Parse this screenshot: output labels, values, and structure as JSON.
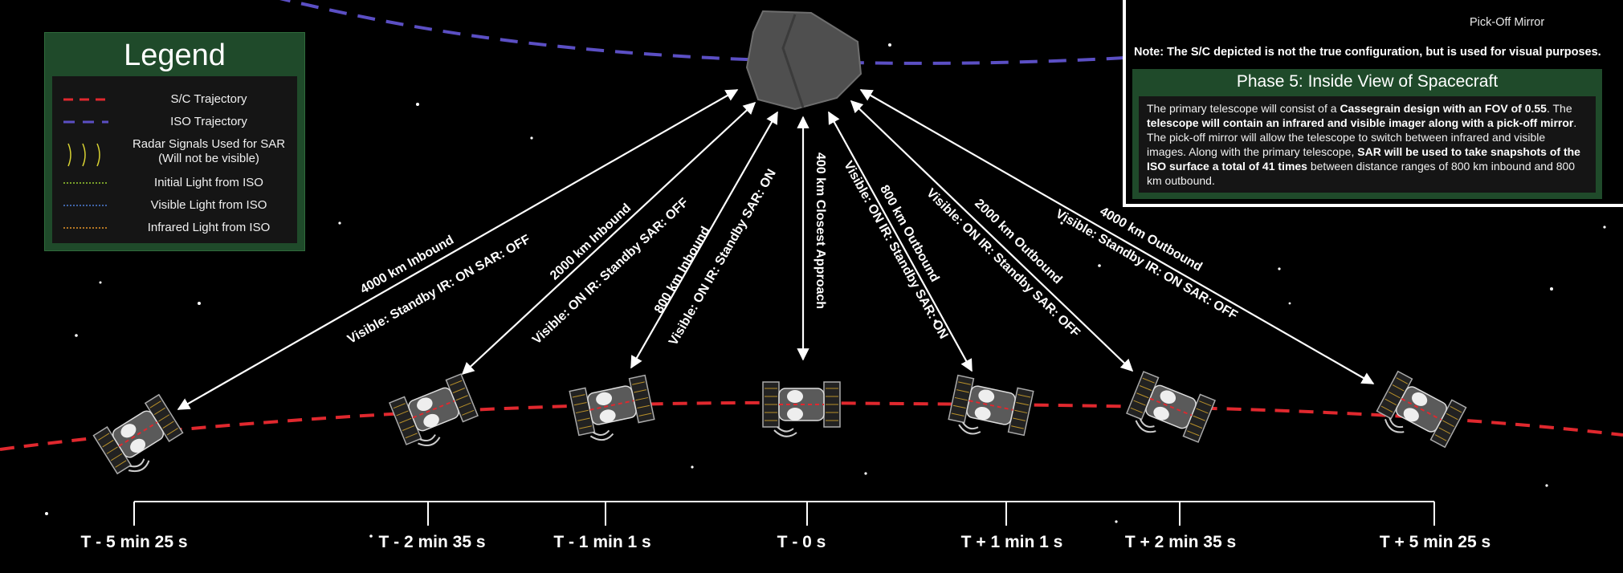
{
  "legend": {
    "title": "Legend",
    "items": [
      {
        "label": "S/C Trajectory",
        "symbol": "red-dashed-line",
        "color": "#e0282e"
      },
      {
        "label": "ISO Trajectory",
        "symbol": "purple-dashed-line",
        "color": "#5b4fc4"
      },
      {
        "label": "Radar Signals Used for SAR",
        "label2": "(Will not be visible)",
        "symbol": "yellow-arcs",
        "color": "#d8d232"
      },
      {
        "label": "Initial Light from ISO",
        "symbol": "green-dotted-line",
        "color": "#9acd32"
      },
      {
        "label": "Visible Light from ISO",
        "symbol": "blue-dotted-line",
        "color": "#4f7fd8"
      },
      {
        "label": "Infrared Light from ISO",
        "symbol": "orange-dotted-line",
        "color": "#e8962a"
      }
    ]
  },
  "info": {
    "pickoff_label": "Pick-Off Mirror",
    "note": "Note: The S/C depicted is not the true configuration, but is used for visual purposes.",
    "phase_title": "Phase 5: Inside View of Spacecraft",
    "text": {
      "p1": "The primary telescope will consist of a ",
      "b1": "Cassegrain design with an FOV of 0.55",
      "p2": ". The ",
      "b2": "telescope will contain an infrared and visible imager along with a pick-off mirror",
      "p3": ". The pick-off mirror will allow the telescope to switch between infrared and visible images. Along with the primary telescope, ",
      "b3": "SAR will be used to take snapshots of the ISO surface a total of 41 times",
      "p4": " between distance ranges of 800 km inbound and 800 km outbound."
    }
  },
  "approaches": [
    {
      "range": "4000 km  Inbound",
      "status": "Visible: Standby    IR: ON    SAR: OFF"
    },
    {
      "range": "2000 km Inbound",
      "status": "Visible: ON   IR: Standby   SAR: OFF"
    },
    {
      "range": "800 km Inbound",
      "status": "Visible: ON   IR: Standby   SAR: ON"
    },
    {
      "range": "400 km Closest Approach",
      "status": ""
    },
    {
      "range": "800 km Outbound",
      "status": "Visible: ON   IR: Standby   SAR: ON"
    },
    {
      "range": "2000 km Outbound",
      "status": "Visible: ON   IR: Standby   SAR: OFF"
    },
    {
      "range": "4000 km Outbound",
      "status": "Visible: Standby   IR: ON   SAR: OFF"
    }
  ],
  "timeline": [
    {
      "label": "T - 5 min 25 s"
    },
    {
      "label": "T - 2 min 35 s"
    },
    {
      "label": "T - 1 min 1 s"
    },
    {
      "label": "T - 0 s"
    },
    {
      "label": "T + 1 min 1 s"
    },
    {
      "label": "T + 2 min 35 s"
    },
    {
      "label": "T + 5 min 25 s"
    }
  ],
  "colors": {
    "sc_trajectory": "#e0282e",
    "iso_trajectory": "#5b4fc4",
    "legend_bg": "#1f4a2a"
  }
}
